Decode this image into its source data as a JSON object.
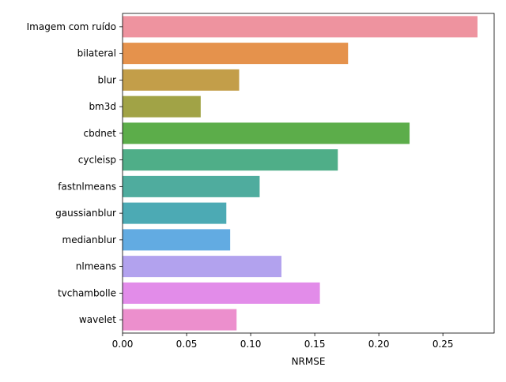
{
  "chart_data": {
    "type": "bar",
    "orientation": "horizontal",
    "categories": [
      "Imagem com ruído",
      "bilateral",
      "blur",
      "bm3d",
      "cbdnet",
      "cycleisp",
      "fastnlmeans",
      "gaussianblur",
      "medianblur",
      "nlmeans",
      "tvchambolle",
      "wavelet"
    ],
    "values": [
      0.277,
      0.176,
      0.091,
      0.061,
      0.224,
      0.168,
      0.107,
      0.081,
      0.084,
      0.124,
      0.154,
      0.089
    ],
    "colors": [
      "#ee939f",
      "#e5924c",
      "#c39e49",
      "#a1a346",
      "#5cad4a",
      "#4fae88",
      "#4fac9e",
      "#4caab4",
      "#62abe2",
      "#b2a2ee",
      "#e28ce9",
      "#ec8fcd"
    ],
    "title": "",
    "xlabel": "NRMSE",
    "ylabel": "",
    "xlim": [
      0,
      0.29
    ],
    "xticks": [
      0.0,
      0.05,
      0.1,
      0.15,
      0.2,
      0.25
    ],
    "xtick_labels": [
      "0.00",
      "0.05",
      "0.10",
      "0.15",
      "0.20",
      "0.25"
    ],
    "grid": false,
    "legend": "none"
  }
}
